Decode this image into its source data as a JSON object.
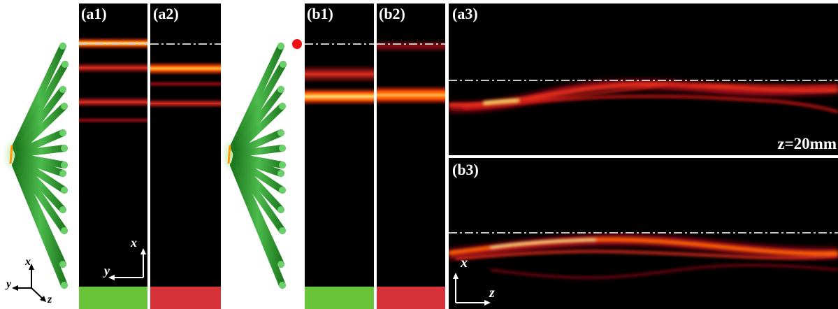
{
  "panels": {
    "a1": "(a1)",
    "a2": "(a2)",
    "b1": "(b1)",
    "b2": "(b2)",
    "a3": "(a3)",
    "b3": "(b3)"
  },
  "annotations": {
    "distance": "z=20mm"
  },
  "axes": {
    "x": "x",
    "y": "y",
    "z": "z"
  },
  "colors": {
    "panel_bg": "#000000",
    "beam_hot": "#fff3a0",
    "beam_mid": "#ff6a00",
    "beam_dark": "#c0101a",
    "guide_line": "#c8c8c8",
    "waveguide": "#3aa33a",
    "green_bar": "#6ac43a",
    "red_bar": "#d6323a",
    "marker_dot": "#ee1111"
  }
}
